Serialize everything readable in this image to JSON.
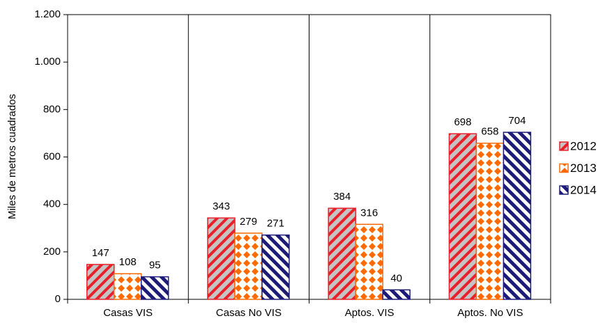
{
  "chart_data": {
    "type": "bar",
    "y_label": "Miles de metros cuadrados",
    "categories": [
      "Casas VIS",
      "Casas No VIS",
      "Aptos. VIS",
      "Aptos. No VIS"
    ],
    "series": [
      {
        "name": "2012",
        "color": "#e8202a",
        "pattern": "stripes-on-gray",
        "values": [
          147,
          343,
          384,
          698
        ]
      },
      {
        "name": "2013",
        "color": "#ff6a00",
        "pattern": "diamonds",
        "values": [
          108,
          279,
          316,
          658
        ]
      },
      {
        "name": "2014",
        "color": "#1c1c78",
        "pattern": "stripes",
        "values": [
          95,
          271,
          40,
          704
        ]
      }
    ],
    "ylim": [
      0,
      1200
    ],
    "yticks": [
      0,
      200,
      400,
      600,
      800,
      {
        "value": 1000,
        "label": "1.000"
      },
      {
        "value": 1200,
        "label": "1.200"
      }
    ],
    "legend": "right"
  }
}
